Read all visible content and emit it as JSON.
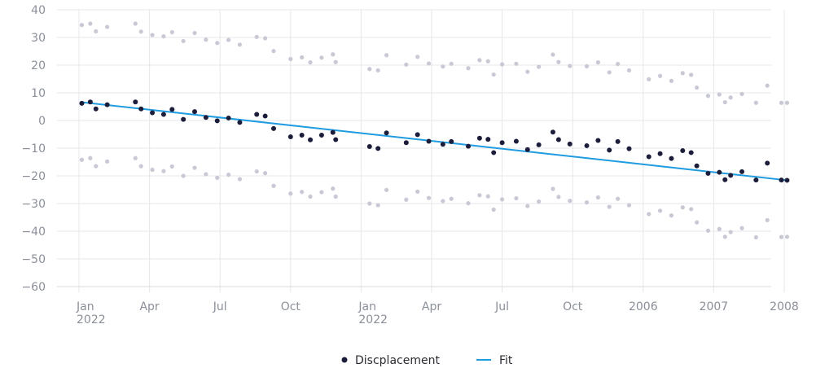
{
  "chart_data": {
    "type": "scatter",
    "title": "",
    "xlabel": "",
    "ylabel": "",
    "ylim": [
      -60,
      40
    ],
    "y_ticks": [
      40,
      30,
      20,
      10,
      0,
      -10,
      -20,
      -30,
      -40,
      -50,
      -60
    ],
    "x_tick_labels": [
      {
        "line1": "Jan",
        "line2": "2022"
      },
      {
        "line1": "Apr",
        "line2": ""
      },
      {
        "line1": "Jul",
        "line2": ""
      },
      {
        "line1": "Oct",
        "line2": ""
      },
      {
        "line1": "Jan",
        "line2": "2022"
      },
      {
        "line1": "Apr",
        "line2": ""
      },
      {
        "line1": "Jul",
        "line2": ""
      },
      {
        "line1": "Oct",
        "line2": ""
      },
      {
        "line1": "2006",
        "line2": ""
      },
      {
        "line1": "2007",
        "line2": ""
      },
      {
        "line1": "2008",
        "line2": ""
      }
    ],
    "grid": true,
    "legend_position": "bottom-center",
    "colors": {
      "displacement": "#1b1d3a",
      "bounds": "#c9c9d6",
      "fit": "#1f9be0",
      "grid": "#e6e7ea"
    },
    "series": [
      {
        "name": "Discplacement",
        "kind": "points",
        "x": [
          0.1,
          0.4,
          0.6,
          1.0,
          2.0,
          2.2,
          2.6,
          3.0,
          3.3,
          3.7,
          4.1,
          4.5,
          4.9,
          5.3,
          5.7,
          6.3,
          6.6,
          6.9,
          7.5,
          7.9,
          8.2,
          8.6,
          9.0,
          9.1,
          10.3,
          10.6,
          10.9,
          11.6,
          12.0,
          12.4,
          12.9,
          13.2,
          13.8,
          14.2,
          14.5,
          14.7,
          15.0,
          15.5,
          15.9,
          16.3,
          16.8,
          17.0,
          17.4,
          18.0,
          18.4,
          18.8,
          19.1,
          19.5,
          20.2,
          20.6,
          21.0,
          21.4,
          21.7,
          21.9,
          22.3,
          22.7,
          22.9,
          23.1,
          23.5,
          24.0,
          24.4,
          24.9,
          25.1
        ],
        "y": [
          6.2,
          6.7,
          4.2,
          5.7,
          6.7,
          4.2,
          2.8,
          2.2,
          4.0,
          0.4,
          3.2,
          1.1,
          -0.1,
          0.9,
          -0.7,
          2.2,
          1.6,
          -2.9,
          -5.9,
          -5.3,
          -7.0,
          -5.3,
          -4.3,
          -6.9,
          -9.4,
          -10.1,
          -4.5,
          -8.0,
          -5.1,
          -7.5,
          -8.6,
          -7.6,
          -9.3,
          -6.4,
          -6.8,
          -11.6,
          -8.0,
          -7.5,
          -10.5,
          -8.8,
          -4.2,
          -6.9,
          -8.5,
          -9.1,
          -7.2,
          -10.7,
          -7.6,
          -10.2,
          -13.1,
          -12.0,
          -13.7,
          -10.9,
          -11.6,
          -16.4,
          -19.1,
          -18.7,
          -21.4,
          -19.8,
          -18.5,
          -21.5,
          -15.4,
          -21.5,
          -21.6
        ]
      },
      {
        "name": "",
        "kind": "points",
        "band": "upper",
        "x": [
          0.1,
          0.4,
          0.6,
          1.0,
          2.0,
          2.2,
          2.6,
          3.0,
          3.3,
          3.7,
          4.1,
          4.5,
          4.9,
          5.3,
          5.7,
          6.3,
          6.6,
          6.9,
          7.5,
          7.9,
          8.2,
          8.6,
          9.0,
          9.1,
          10.3,
          10.6,
          10.9,
          11.6,
          12.0,
          12.4,
          12.9,
          13.2,
          13.8,
          14.2,
          14.5,
          14.7,
          15.0,
          15.5,
          15.9,
          16.3,
          16.8,
          17.0,
          17.4,
          18.0,
          18.4,
          18.8,
          19.1,
          19.5,
          20.2,
          20.6,
          21.0,
          21.4,
          21.7,
          21.9,
          22.3,
          22.7,
          22.9,
          23.1,
          23.5,
          24.0,
          24.4,
          24.9,
          25.1
        ],
        "y": [
          34.5,
          35.0,
          32.2,
          33.8,
          35.0,
          32.1,
          30.9,
          30.4,
          31.9,
          28.7,
          31.6,
          29.2,
          28.0,
          29.1,
          27.4,
          30.2,
          29.7,
          25.1,
          22.2,
          22.8,
          21.0,
          22.7,
          23.9,
          21.1,
          18.6,
          18.1,
          23.6,
          20.2,
          23.0,
          20.6,
          19.5,
          20.5,
          18.9,
          21.8,
          21.4,
          16.6,
          20.3,
          20.5,
          17.6,
          19.4,
          23.8,
          21.1,
          19.7,
          19.6,
          21.0,
          17.4,
          20.4,
          18.1,
          14.9,
          16.1,
          14.3,
          17.1,
          16.5,
          11.9,
          8.9,
          9.4,
          6.6,
          8.3,
          9.6,
          6.4,
          12.6,
          6.4,
          6.4
        ]
      },
      {
        "name": "",
        "kind": "points",
        "band": "lower",
        "x": [
          0.1,
          0.4,
          0.6,
          1.0,
          2.0,
          2.2,
          2.6,
          3.0,
          3.3,
          3.7,
          4.1,
          4.5,
          4.9,
          5.3,
          5.7,
          6.3,
          6.6,
          6.9,
          7.5,
          7.9,
          8.2,
          8.6,
          9.0,
          9.1,
          10.3,
          10.6,
          10.9,
          11.6,
          12.0,
          12.4,
          12.9,
          13.2,
          13.8,
          14.2,
          14.5,
          14.7,
          15.0,
          15.5,
          15.9,
          16.3,
          16.8,
          17.0,
          17.4,
          18.0,
          18.4,
          18.8,
          19.1,
          19.5,
          20.2,
          20.6,
          21.0,
          21.4,
          21.7,
          21.9,
          22.3,
          22.7,
          22.9,
          23.1,
          23.5,
          24.0,
          24.4,
          24.9,
          25.1
        ],
        "y": [
          -14.2,
          -13.6,
          -16.5,
          -14.8,
          -13.6,
          -16.5,
          -17.8,
          -18.3,
          -16.6,
          -20.0,
          -17.1,
          -19.4,
          -20.7,
          -19.6,
          -21.2,
          -18.4,
          -19.0,
          -23.6,
          -26.4,
          -25.8,
          -27.5,
          -25.9,
          -24.6,
          -27.5,
          -30.0,
          -30.6,
          -25.1,
          -28.6,
          -25.7,
          -28.0,
          -29.1,
          -28.3,
          -29.9,
          -27.0,
          -27.4,
          -32.2,
          -28.5,
          -28.1,
          -30.9,
          -29.3,
          -24.7,
          -27.6,
          -29.0,
          -29.6,
          -27.8,
          -31.2,
          -28.3,
          -30.6,
          -33.8,
          -32.6,
          -34.3,
          -31.4,
          -32.0,
          -36.8,
          -39.8,
          -39.2,
          -42.0,
          -40.3,
          -38.9,
          -42.2,
          -36.0,
          -42.1,
          -42.0
        ]
      },
      {
        "name": "Fit",
        "kind": "line",
        "x": [
          0.1,
          25.1
        ],
        "y": [
          6.6,
          -21.6
        ]
      }
    ]
  }
}
